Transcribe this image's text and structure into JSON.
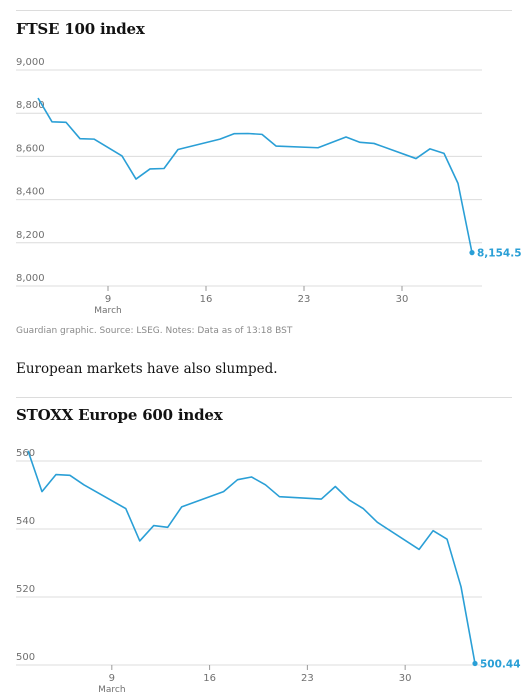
{
  "ftse": {
    "title": "FTSE 100 index",
    "note": "Guardian graphic. Source: LSEG. Notes: Data as of 13:18 BST"
  },
  "bridge_text": "European markets have also slumped.",
  "stoxx": {
    "title": "STOXX Europe 600 index"
  },
  "colors": {
    "line": "#2a9fd6",
    "grid": "#dcdcdc",
    "tick": "#707070"
  },
  "chart_data": [
    {
      "type": "line",
      "title": "FTSE 100 index",
      "xlabel": "",
      "ylabel": "",
      "ylim": [
        8000,
        9000
      ],
      "xlim": [
        3,
        35
      ],
      "y_ticks": [
        9000,
        8800,
        8600,
        8400,
        8200,
        8000
      ],
      "y_tick_labels": [
        "9,000",
        "8,800",
        "8,600",
        "8,400",
        "8,200",
        "8,000"
      ],
      "x_ticks": [
        9,
        16,
        23,
        30
      ],
      "x_tick_labels": [
        "9",
        "16",
        "23",
        "30"
      ],
      "x_subtitle": "March",
      "grid": true,
      "end_label": "8,154.56",
      "series": [
        {
          "x": [
            4,
            5,
            6,
            7,
            8,
            10,
            11,
            12,
            13,
            14,
            17,
            18,
            19,
            20,
            21,
            24,
            25,
            26,
            27,
            28,
            31,
            32,
            33,
            34,
            35
          ],
          "values": [
            8870,
            8760,
            8758,
            8682,
            8680,
            8602,
            8495,
            8542,
            8544,
            8632,
            8680,
            8705,
            8706,
            8702,
            8648,
            8640,
            8665,
            8690,
            8665,
            8660,
            8590,
            8635,
            8614,
            8475,
            8154.56
          ]
        }
      ]
    },
    {
      "type": "line",
      "title": "STOXX Europe 600 index",
      "xlabel": "",
      "ylabel": "",
      "ylim": [
        500,
        560
      ],
      "xlim": [
        3,
        35
      ],
      "y_ticks": [
        560,
        540,
        520,
        500
      ],
      "y_tick_labels": [
        "560",
        "540",
        "520",
        "500"
      ],
      "x_ticks": [
        9,
        16,
        23,
        30
      ],
      "x_tick_labels": [
        "9",
        "16",
        "23",
        "30"
      ],
      "x_subtitle": "March",
      "grid": true,
      "end_label": "500.44",
      "series": [
        {
          "x": [
            3,
            4,
            5,
            6,
            7,
            10,
            11,
            12,
            13,
            14,
            17,
            18,
            19,
            20,
            21,
            24,
            25,
            26,
            27,
            28,
            31,
            32,
            33,
            34,
            35
          ],
          "values": [
            563,
            551,
            556,
            555.8,
            553,
            546,
            536.5,
            541,
            540.5,
            546.5,
            551,
            554.5,
            555.3,
            553,
            549.5,
            548.8,
            552.5,
            548.5,
            546,
            542,
            534,
            539.5,
            537,
            523,
            500.44
          ]
        }
      ]
    }
  ]
}
